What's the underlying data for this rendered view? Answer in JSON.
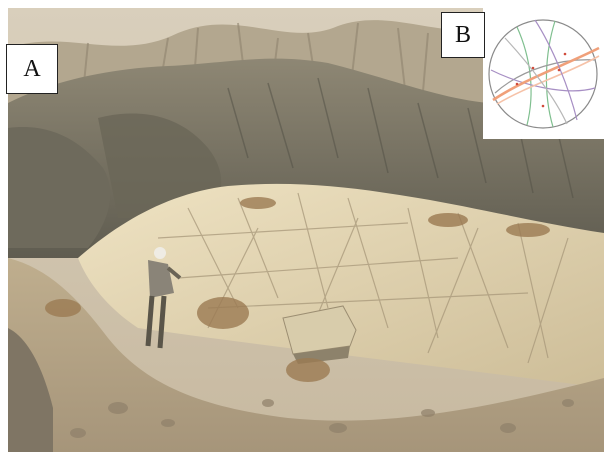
{
  "figure": {
    "panel_a_label": "A",
    "panel_b_label": "B"
  },
  "photo": {
    "description_icon": "photo-icon",
    "colors": {
      "sky_haze": "#d8cdb8",
      "far_hills": "#a69c86",
      "mid_ridge": "#7d7868",
      "bedrock": "#ddd0b0",
      "foreground": "#b8a98c"
    }
  },
  "stereonet": {
    "colors": {
      "primitive": "#888888",
      "great_circle_green": "#7fbf8f",
      "great_circle_orange": "#f0a07a",
      "great_circle_purple": "#a78fc4",
      "great_circle_grey": "#9a9a9a"
    }
  }
}
